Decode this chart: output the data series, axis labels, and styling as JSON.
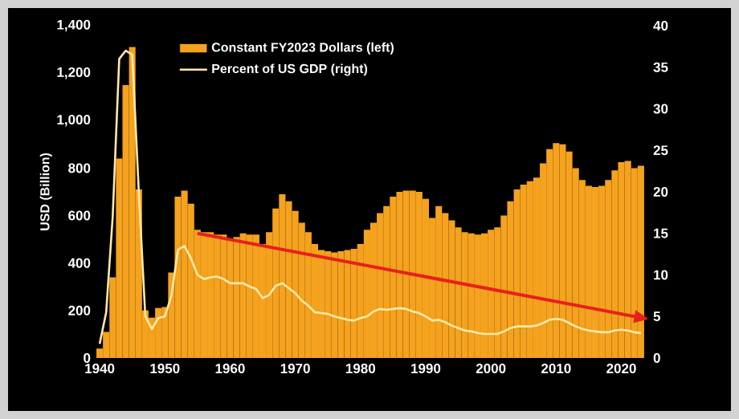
{
  "chart_data": {
    "type": "bar",
    "x": [
      1940,
      1941,
      1942,
      1943,
      1944,
      1945,
      1946,
      1947,
      1948,
      1949,
      1950,
      1951,
      1952,
      1953,
      1954,
      1955,
      1956,
      1957,
      1958,
      1959,
      1960,
      1961,
      1962,
      1963,
      1964,
      1965,
      1966,
      1967,
      1968,
      1969,
      1970,
      1971,
      1972,
      1973,
      1974,
      1975,
      1976,
      1977,
      1978,
      1979,
      1980,
      1981,
      1982,
      1983,
      1984,
      1985,
      1986,
      1987,
      1988,
      1989,
      1990,
      1991,
      1992,
      1993,
      1994,
      1995,
      1996,
      1997,
      1998,
      1999,
      2000,
      2001,
      2002,
      2003,
      2004,
      2005,
      2006,
      2007,
      2008,
      2009,
      2010,
      2011,
      2012,
      2013,
      2014,
      2015,
      2016,
      2017,
      2018,
      2019,
      2020,
      2021,
      2022,
      2023
    ],
    "ylabel": "USD (Billion)",
    "series": [
      {
        "name": "Constant FY2023 Dollars (left)",
        "color": "#f5a21e",
        "values": [
          40,
          110,
          340,
          840,
          1150,
          1310,
          710,
          200,
          170,
          210,
          215,
          360,
          680,
          705,
          650,
          540,
          530,
          530,
          520,
          520,
          500,
          510,
          525,
          520,
          520,
          480,
          530,
          630,
          690,
          660,
          620,
          570,
          530,
          480,
          455,
          450,
          445,
          450,
          455,
          460,
          480,
          540,
          570,
          610,
          640,
          680,
          700,
          705,
          705,
          700,
          670,
          590,
          640,
          610,
          580,
          550,
          530,
          525,
          520,
          525,
          540,
          550,
          600,
          660,
          710,
          730,
          745,
          760,
          820,
          880,
          905,
          900,
          870,
          800,
          750,
          725,
          720,
          725,
          750,
          790,
          825,
          830,
          800,
          810
        ]
      },
      {
        "name": "Percent of US GDP (right)",
        "type": "line",
        "axis": "y2",
        "color": "#ffe9a8",
        "values": [
          1.7,
          5.5,
          17,
          36,
          37,
          36.5,
          20,
          5,
          3.5,
          4.8,
          5,
          7.5,
          13,
          13.5,
          12,
          10,
          9.5,
          9.7,
          9.8,
          9.5,
          9,
          9,
          9,
          8.6,
          8.3,
          7.2,
          7.6,
          8.7,
          9,
          8.4,
          7.8,
          6.9,
          6.3,
          5.5,
          5.4,
          5.3,
          5,
          4.8,
          4.6,
          4.5,
          4.8,
          5,
          5.6,
          5.9,
          5.8,
          5.9,
          6,
          5.9,
          5.6,
          5.4,
          5,
          4.5,
          4.6,
          4.3,
          3.9,
          3.6,
          3.3,
          3.2,
          3,
          2.9,
          2.9,
          2.9,
          3.2,
          3.6,
          3.8,
          3.8,
          3.8,
          3.9,
          4.2,
          4.6,
          4.7,
          4.6,
          4.2,
          3.8,
          3.5,
          3.3,
          3.2,
          3.1,
          3.1,
          3.3,
          3.4,
          3.3,
          3.1,
          3
        ]
      },
      {
        "type": "line",
        "axis": "y2",
        "color": "#e8201a",
        "x": [
          1955,
          2022
        ],
        "values": [
          15,
          5
        ]
      }
    ],
    "xlim": [
      1939.5,
      2024
    ],
    "xticks": [
      1940,
      1950,
      1960,
      1970,
      1980,
      1990,
      2000,
      2010,
      2020
    ],
    "ylim": [
      0,
      1400
    ],
    "yticks": [
      0,
      200,
      400,
      600,
      800,
      {
        "value": 1000,
        "label": "1,000"
      },
      {
        "value": 1200,
        "label": "1,200"
      },
      {
        "value": 1400,
        "label": "1,400"
      }
    ],
    "y2lim": [
      0,
      40
    ],
    "y2ticks": [
      0,
      5,
      10,
      15,
      20,
      25,
      30,
      35,
      40
    ],
    "legend": "top left",
    "grid": false
  }
}
